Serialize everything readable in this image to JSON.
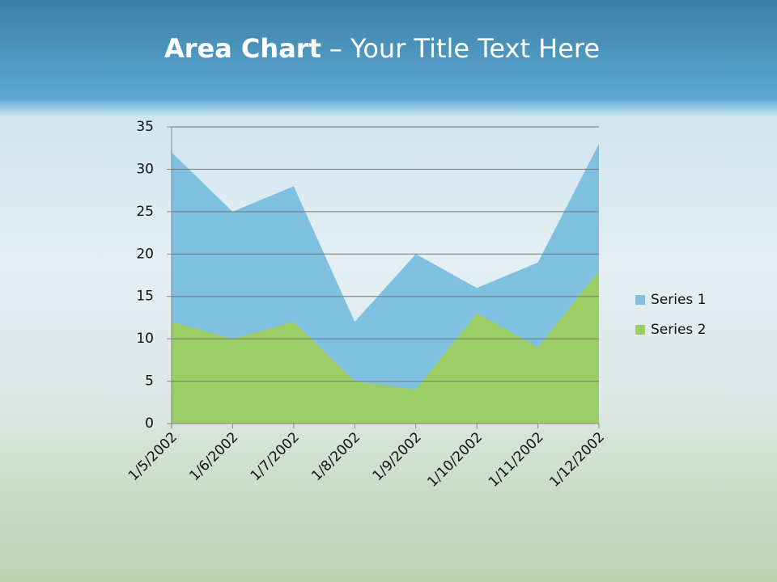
{
  "chart_data": {
    "type": "area",
    "title": "Area Chart",
    "title_rest": "– Your Title Text Here",
    "categories": [
      "1/5/2002",
      "1/6/2002",
      "1/7/2002",
      "1/8/2002",
      "1/9/2002",
      "1/10/2002",
      "1/11/2002",
      "1/12/2002"
    ],
    "series": [
      {
        "name": "Series 1",
        "color": "#7fbfdf",
        "values": [
          32,
          25,
          28,
          12,
          20,
          16,
          19,
          33
        ]
      },
      {
        "name": "Series 2",
        "color": "#9bcd64",
        "values": [
          12,
          10,
          12,
          5,
          4,
          13,
          9,
          18
        ]
      }
    ],
    "ylim": [
      0,
      35
    ],
    "yticks": [
      0,
      5,
      10,
      15,
      20,
      25,
      30,
      35
    ],
    "grid": true,
    "legend": "right"
  }
}
